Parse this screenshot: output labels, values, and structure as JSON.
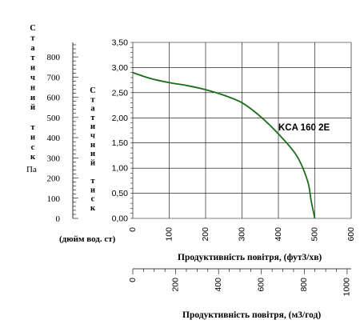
{
  "chart_data": {
    "type": "line",
    "series": [
      {
        "name": "KCA 160 2E",
        "color": "#1a6e1a",
        "x": [
          0,
          50,
          100,
          150,
          200,
          250,
          300,
          350,
          400,
          450,
          480,
          490,
          500
        ],
        "y": [
          2.9,
          2.78,
          2.7,
          2.64,
          2.56,
          2.45,
          2.3,
          2.03,
          1.68,
          1.25,
          0.75,
          0.35,
          0.0
        ]
      }
    ],
    "x_primary": {
      "label": "Продуктивність повітря, (фут3/хв)",
      "range": [
        0,
        600
      ],
      "ticks": [
        "0",
        "100",
        "200",
        "300",
        "400",
        "500",
        "600"
      ],
      "tick_values": [
        0,
        100,
        200,
        300,
        400,
        500,
        600
      ]
    },
    "x_secondary": {
      "label": "Продуктивність повітря, (м3/год)",
      "range": [
        0,
        1019
      ],
      "ticks": [
        "0",
        "200",
        "400",
        "600",
        "800",
        "1000"
      ],
      "tick_values": [
        0,
        200,
        400,
        600,
        800,
        1000
      ]
    },
    "y_primary": {
      "label": "Статичний тиск",
      "unit": "(дюйм вод. ст)",
      "range": [
        0,
        3.5
      ],
      "ticks": [
        "0,00",
        "0,50",
        "1,00",
        "1,50",
        "2,00",
        "2,50",
        "3,00",
        "3,50"
      ],
      "tick_values": [
        0,
        0.5,
        1.0,
        1.5,
        2.0,
        2.5,
        3.0,
        3.5
      ]
    },
    "y_secondary": {
      "label": "Статичний тиск",
      "unit": "Па",
      "range": [
        0,
        871.8
      ],
      "ticks": [
        "0",
        "100",
        "200",
        "300",
        "400",
        "500",
        "600",
        "700",
        "800"
      ],
      "tick_values": [
        0,
        100,
        200,
        300,
        400,
        500,
        600,
        700,
        800
      ]
    },
    "annotation": "KCA 160 2E",
    "grid": true
  }
}
